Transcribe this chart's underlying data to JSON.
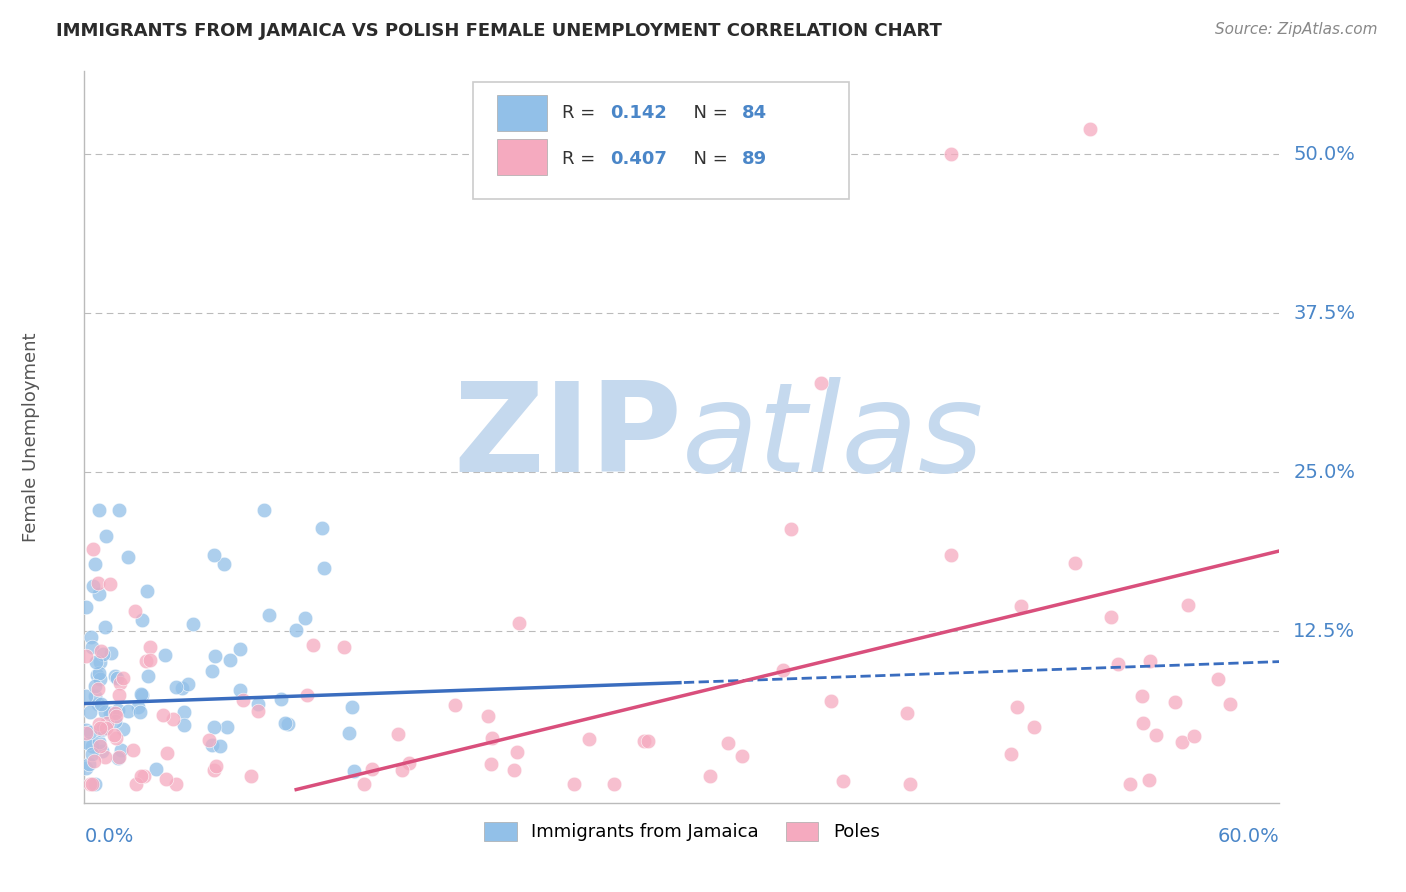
{
  "title": "IMMIGRANTS FROM JAMAICA VS POLISH FEMALE UNEMPLOYMENT CORRELATION CHART",
  "source": "Source: ZipAtlas.com",
  "ylabel": "Female Unemployment",
  "xlim": [
    0.0,
    0.6
  ],
  "ylim": [
    -0.01,
    0.565
  ],
  "ytick_vals": [
    0.125,
    0.25,
    0.375,
    0.5
  ],
  "ytick_labels": [
    "12.5%",
    "25.0%",
    "37.5%",
    "50.0%"
  ],
  "blue_R": 0.142,
  "blue_N": 84,
  "pink_R": 0.407,
  "pink_N": 89,
  "blue_color": "#92C0E8",
  "pink_color": "#F5AABF",
  "blue_trend_color": "#3A6DBF",
  "pink_trend_color": "#D94F7C",
  "blue_label": "Immigrants from Jamaica",
  "pink_label": "Poles",
  "watermark_zip": "ZIP",
  "watermark_atlas": "atlas",
  "watermark_color": "#C5D9EE",
  "grid_color": "#BBBBBB",
  "title_color": "#2B2B2B",
  "axis_label_color": "#4A86C8",
  "legend_text_color": "#4A86C8",
  "legend_R_label": "R = ",
  "source_color": "#888888",
  "blue_trend_solid_end": 0.3,
  "blue_trend_intercept": 0.068,
  "blue_trend_slope": 0.055,
  "pink_trend_intercept": -0.04,
  "pink_trend_slope": 0.38
}
